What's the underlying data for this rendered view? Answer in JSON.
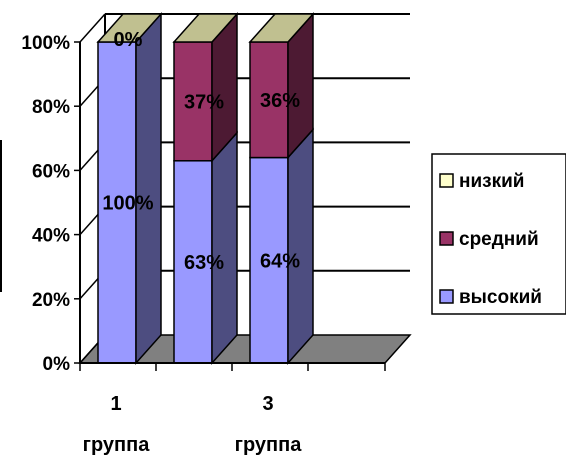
{
  "chart_data": {
    "type": "bar",
    "stacked": true,
    "three_d": true,
    "title": "",
    "xlabel": "",
    "ylabel": "",
    "ylim": [
      0,
      100
    ],
    "y_ticks": [
      "0%",
      "20%",
      "40%",
      "60%",
      "80%",
      "100%"
    ],
    "categories": [
      {
        "number": "1",
        "word": "группа"
      },
      {
        "number": "",
        "word": ""
      },
      {
        "number": "3",
        "word": "группа"
      }
    ],
    "series": [
      {
        "name": "высокий",
        "values": [
          100,
          63,
          64
        ],
        "labels": [
          "100%",
          "63%",
          "64%"
        ],
        "color": "#9999ff"
      },
      {
        "name": "средний",
        "values": [
          0,
          37,
          36
        ],
        "labels": [
          "",
          "37%",
          "36%"
        ],
        "color": "#993366"
      },
      {
        "name": "низкий",
        "values": [
          0,
          0,
          0
        ],
        "labels": [
          "0%",
          "",
          ""
        ],
        "color": "#ffffcc"
      }
    ],
    "legend_order": [
      "низкий",
      "средний",
      "высокий"
    ],
    "legend_position": "right",
    "grid": true
  }
}
